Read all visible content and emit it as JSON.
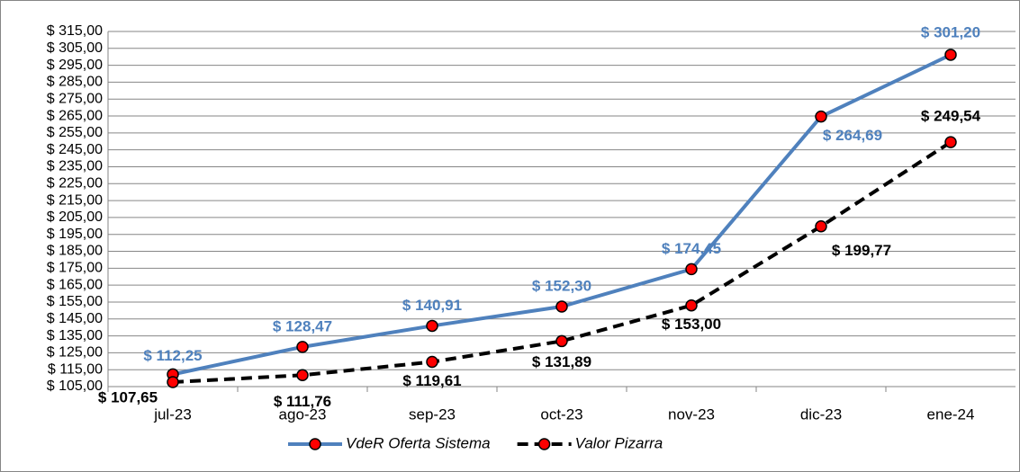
{
  "chart_data": {
    "type": "line",
    "categories": [
      "jul-23",
      "ago-23",
      "sep-23",
      "oct-23",
      "nov-23",
      "dic-23",
      "ene-24"
    ],
    "series": [
      {
        "name": "VdeR Oferta Sistema",
        "color": "#4f81bd",
        "label_color": "#4f81bd",
        "line_style": "solid",
        "marker_color": "#ff0000",
        "values": [
          112.25,
          128.47,
          140.91,
          152.3,
          174.45,
          264.69,
          301.2
        ],
        "value_labels": [
          "$ 112,25",
          "$ 128,47",
          "$ 140,91",
          "$ 152,30",
          "$ 174,45",
          "$ 264,69",
          "$ 301,20"
        ]
      },
      {
        "name": "Valor Pizarra",
        "color": "#000000",
        "label_color": "#000000",
        "line_style": "dashed",
        "marker_color": "#ff0000",
        "values": [
          107.65,
          111.76,
          119.61,
          131.89,
          153.0,
          199.77,
          249.54
        ],
        "value_labels": [
          "$ 107,65",
          "$ 111,76",
          "$ 119,61",
          "$ 131,89",
          "$ 153,00",
          "$ 199,77",
          "$ 249,54"
        ]
      }
    ],
    "ylim": [
      105,
      315
    ],
    "yticks": [
      {
        "value": 105,
        "label": "$ 105,00"
      },
      {
        "value": 115,
        "label": "$ 115,00"
      },
      {
        "value": 125,
        "label": "$ 125,00"
      },
      {
        "value": 135,
        "label": "$ 135,00"
      },
      {
        "value": 145,
        "label": "$ 145,00"
      },
      {
        "value": 155,
        "label": "$ 155,00"
      },
      {
        "value": 165,
        "label": "$ 165,00"
      },
      {
        "value": 175,
        "label": "$ 175,00"
      },
      {
        "value": 185,
        "label": "$ 185,00"
      },
      {
        "value": 195,
        "label": "$ 195,00"
      },
      {
        "value": 205,
        "label": "$ 205,00"
      },
      {
        "value": 215,
        "label": "$ 215,00"
      },
      {
        "value": 225,
        "label": "$ 225,00"
      },
      {
        "value": 235,
        "label": "$ 235,00"
      },
      {
        "value": 245,
        "label": "$ 245,00"
      },
      {
        "value": 255,
        "label": "$ 255,00"
      },
      {
        "value": 265,
        "label": "$ 265,00"
      },
      {
        "value": 275,
        "label": "$ 275,00"
      },
      {
        "value": 285,
        "label": "$ 285,00"
      },
      {
        "value": 295,
        "label": "$ 295,00"
      },
      {
        "value": 305,
        "label": "$ 305,00"
      },
      {
        "value": 315,
        "label": "$ 315,00"
      }
    ],
    "grid": true,
    "legend": "bottom"
  }
}
